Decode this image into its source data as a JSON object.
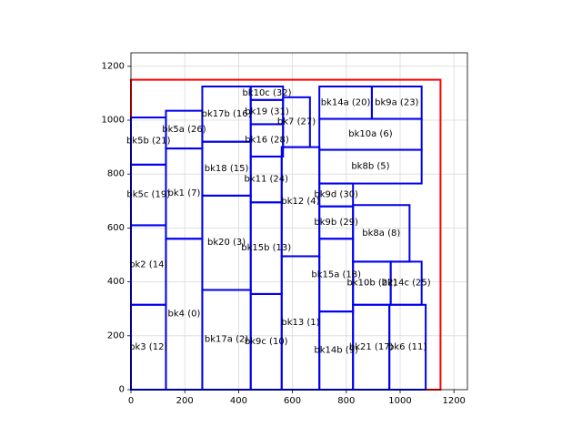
{
  "chart_data": {
    "type": "rectangles",
    "title": "",
    "xlabel": "",
    "ylabel": "",
    "xlim": [
      0,
      1250
    ],
    "ylim": [
      0,
      1250
    ],
    "grid": true,
    "xticks": [
      0,
      200,
      400,
      600,
      800,
      1000,
      1200
    ],
    "yticks": [
      0,
      200,
      400,
      600,
      800,
      1000,
      1200
    ],
    "colors": {
      "outline": "#ff0000",
      "block": "#0000ee",
      "grid": "#d9d9d9",
      "axis": "#000000"
    },
    "outline": {
      "x0": 0,
      "y0": 0,
      "x1": 1150,
      "y1": 1150
    },
    "blocks": [
      {
        "label": "bk3 (12)",
        "x0": 0,
        "y0": 0,
        "x1": 130,
        "y1": 315
      },
      {
        "label": "bk2 (14)",
        "x0": 0,
        "y0": 315,
        "x1": 130,
        "y1": 610
      },
      {
        "label": "bk5c (19)",
        "x0": 0,
        "y0": 610,
        "x1": 130,
        "y1": 835
      },
      {
        "label": "bk5b (21)",
        "x0": 0,
        "y0": 835,
        "x1": 130,
        "y1": 1010
      },
      {
        "label": "bk4 (0)",
        "x0": 130,
        "y0": 0,
        "x1": 265,
        "y1": 560
      },
      {
        "label": "bk1 (7)",
        "x0": 130,
        "y0": 560,
        "x1": 265,
        "y1": 895
      },
      {
        "label": "bk5a (26)",
        "x0": 130,
        "y0": 895,
        "x1": 265,
        "y1": 1035
      },
      {
        "label": "bk17a (2)",
        "x0": 265,
        "y0": 0,
        "x1": 445,
        "y1": 370
      },
      {
        "label": "bk20 (3)",
        "x0": 265,
        "y0": 370,
        "x1": 445,
        "y1": 720
      },
      {
        "label": "bk18 (15)",
        "x0": 265,
        "y0": 720,
        "x1": 445,
        "y1": 920
      },
      {
        "label": "bk17b (16)",
        "x0": 265,
        "y0": 920,
        "x1": 445,
        "y1": 1125
      },
      {
        "label": "bk9c (10)",
        "x0": 445,
        "y0": 0,
        "x1": 560,
        "y1": 355
      },
      {
        "label": "bk15b (13)",
        "x0": 445,
        "y0": 355,
        "x1": 560,
        "y1": 695
      },
      {
        "label": "bk11 (24)",
        "x0": 445,
        "y0": 695,
        "x1": 560,
        "y1": 865
      },
      {
        "label": "bk16 (28)",
        "x0": 445,
        "y0": 865,
        "x1": 565,
        "y1": 985
      },
      {
        "label": "bk19 (31)",
        "x0": 445,
        "y0": 985,
        "x1": 565,
        "y1": 1075
      },
      {
        "label": "bk10c (32)",
        "x0": 445,
        "y0": 1075,
        "x1": 565,
        "y1": 1125
      },
      {
        "label": "bk13 (1)",
        "x0": 560,
        "y0": 0,
        "x1": 700,
        "y1": 495
      },
      {
        "label": "bk12 (4)",
        "x0": 560,
        "y0": 495,
        "x1": 700,
        "y1": 900
      },
      {
        "label": "bk7 (27)",
        "x0": 565,
        "y0": 900,
        "x1": 665,
        "y1": 1085
      },
      {
        "label": "bk14b (9)",
        "x0": 700,
        "y0": 0,
        "x1": 825,
        "y1": 290
      },
      {
        "label": "bk15a (18)",
        "x0": 700,
        "y0": 290,
        "x1": 825,
        "y1": 560
      },
      {
        "label": "bk9b (29)",
        "x0": 700,
        "y0": 560,
        "x1": 825,
        "y1": 680
      },
      {
        "label": "bk9d (30)",
        "x0": 700,
        "y0": 680,
        "x1": 825,
        "y1": 765
      },
      {
        "label": "bk8b (5)",
        "x0": 700,
        "y0": 765,
        "x1": 1080,
        "y1": 890
      },
      {
        "label": "bk10a (6)",
        "x0": 700,
        "y0": 890,
        "x1": 1080,
        "y1": 1005
      },
      {
        "label": "bk14a (20)",
        "x0": 700,
        "y0": 1005,
        "x1": 895,
        "y1": 1125
      },
      {
        "label": "bk9a (23)",
        "x0": 895,
        "y0": 1005,
        "x1": 1080,
        "y1": 1125
      },
      {
        "label": "bk21 (17)",
        "x0": 825,
        "y0": 0,
        "x1": 960,
        "y1": 315
      },
      {
        "label": "bk6 (11)",
        "x0": 960,
        "y0": 0,
        "x1": 1095,
        "y1": 315
      },
      {
        "label": "bk10b (22)",
        "x0": 825,
        "y0": 315,
        "x1": 965,
        "y1": 475
      },
      {
        "label": "bk14c (25)",
        "x0": 965,
        "y0": 315,
        "x1": 1080,
        "y1": 475
      },
      {
        "label": "bk8a (8)",
        "x0": 825,
        "y0": 475,
        "x1": 1035,
        "y1": 685
      }
    ]
  }
}
